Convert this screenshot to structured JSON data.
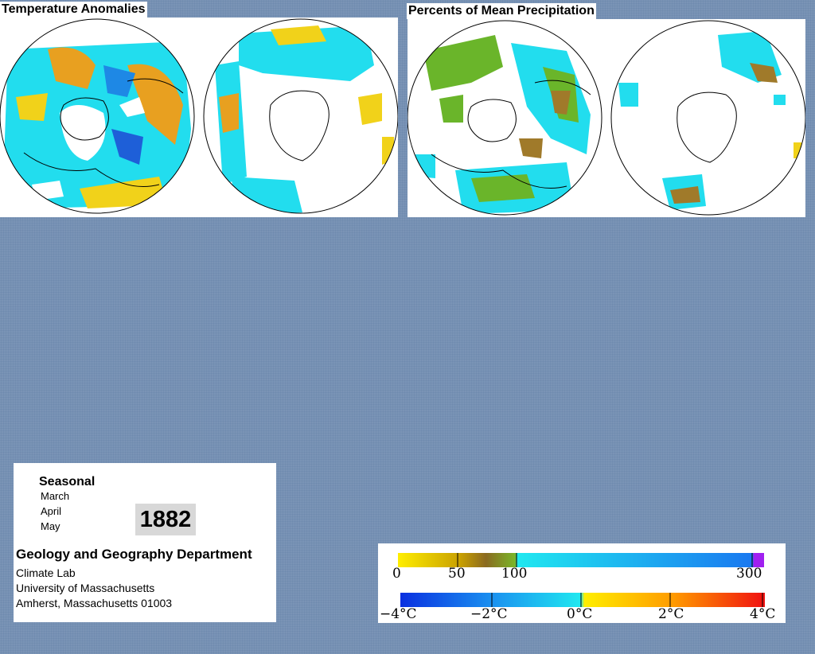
{
  "temperature_panel": {
    "title": "Temperature Anomalies"
  },
  "precipitation_panel": {
    "title": "Percents of Mean Precipitation"
  },
  "info": {
    "period_type": "Seasonal",
    "months": [
      "March",
      "April",
      "May"
    ],
    "year": "1882",
    "department": "Geology and Geography Department",
    "lab": "Climate Lab",
    "university": "University of Massachusetts",
    "address": "Amherst, Massachusetts 01003"
  },
  "legend": {
    "precip_ticks": [
      "0",
      "50",
      "100",
      "300"
    ],
    "temp_ticks": [
      "−4°C",
      "−2°C",
      "0°C",
      "2°C",
      "4°C"
    ]
  },
  "colors": {
    "background": "#7a94b6",
    "cyan": "#22ddee",
    "blue": "#1e88e5",
    "yellow": "#f1d21a",
    "orange": "#e8a020",
    "green": "#6ab52a",
    "brown": "#a07a2a"
  }
}
